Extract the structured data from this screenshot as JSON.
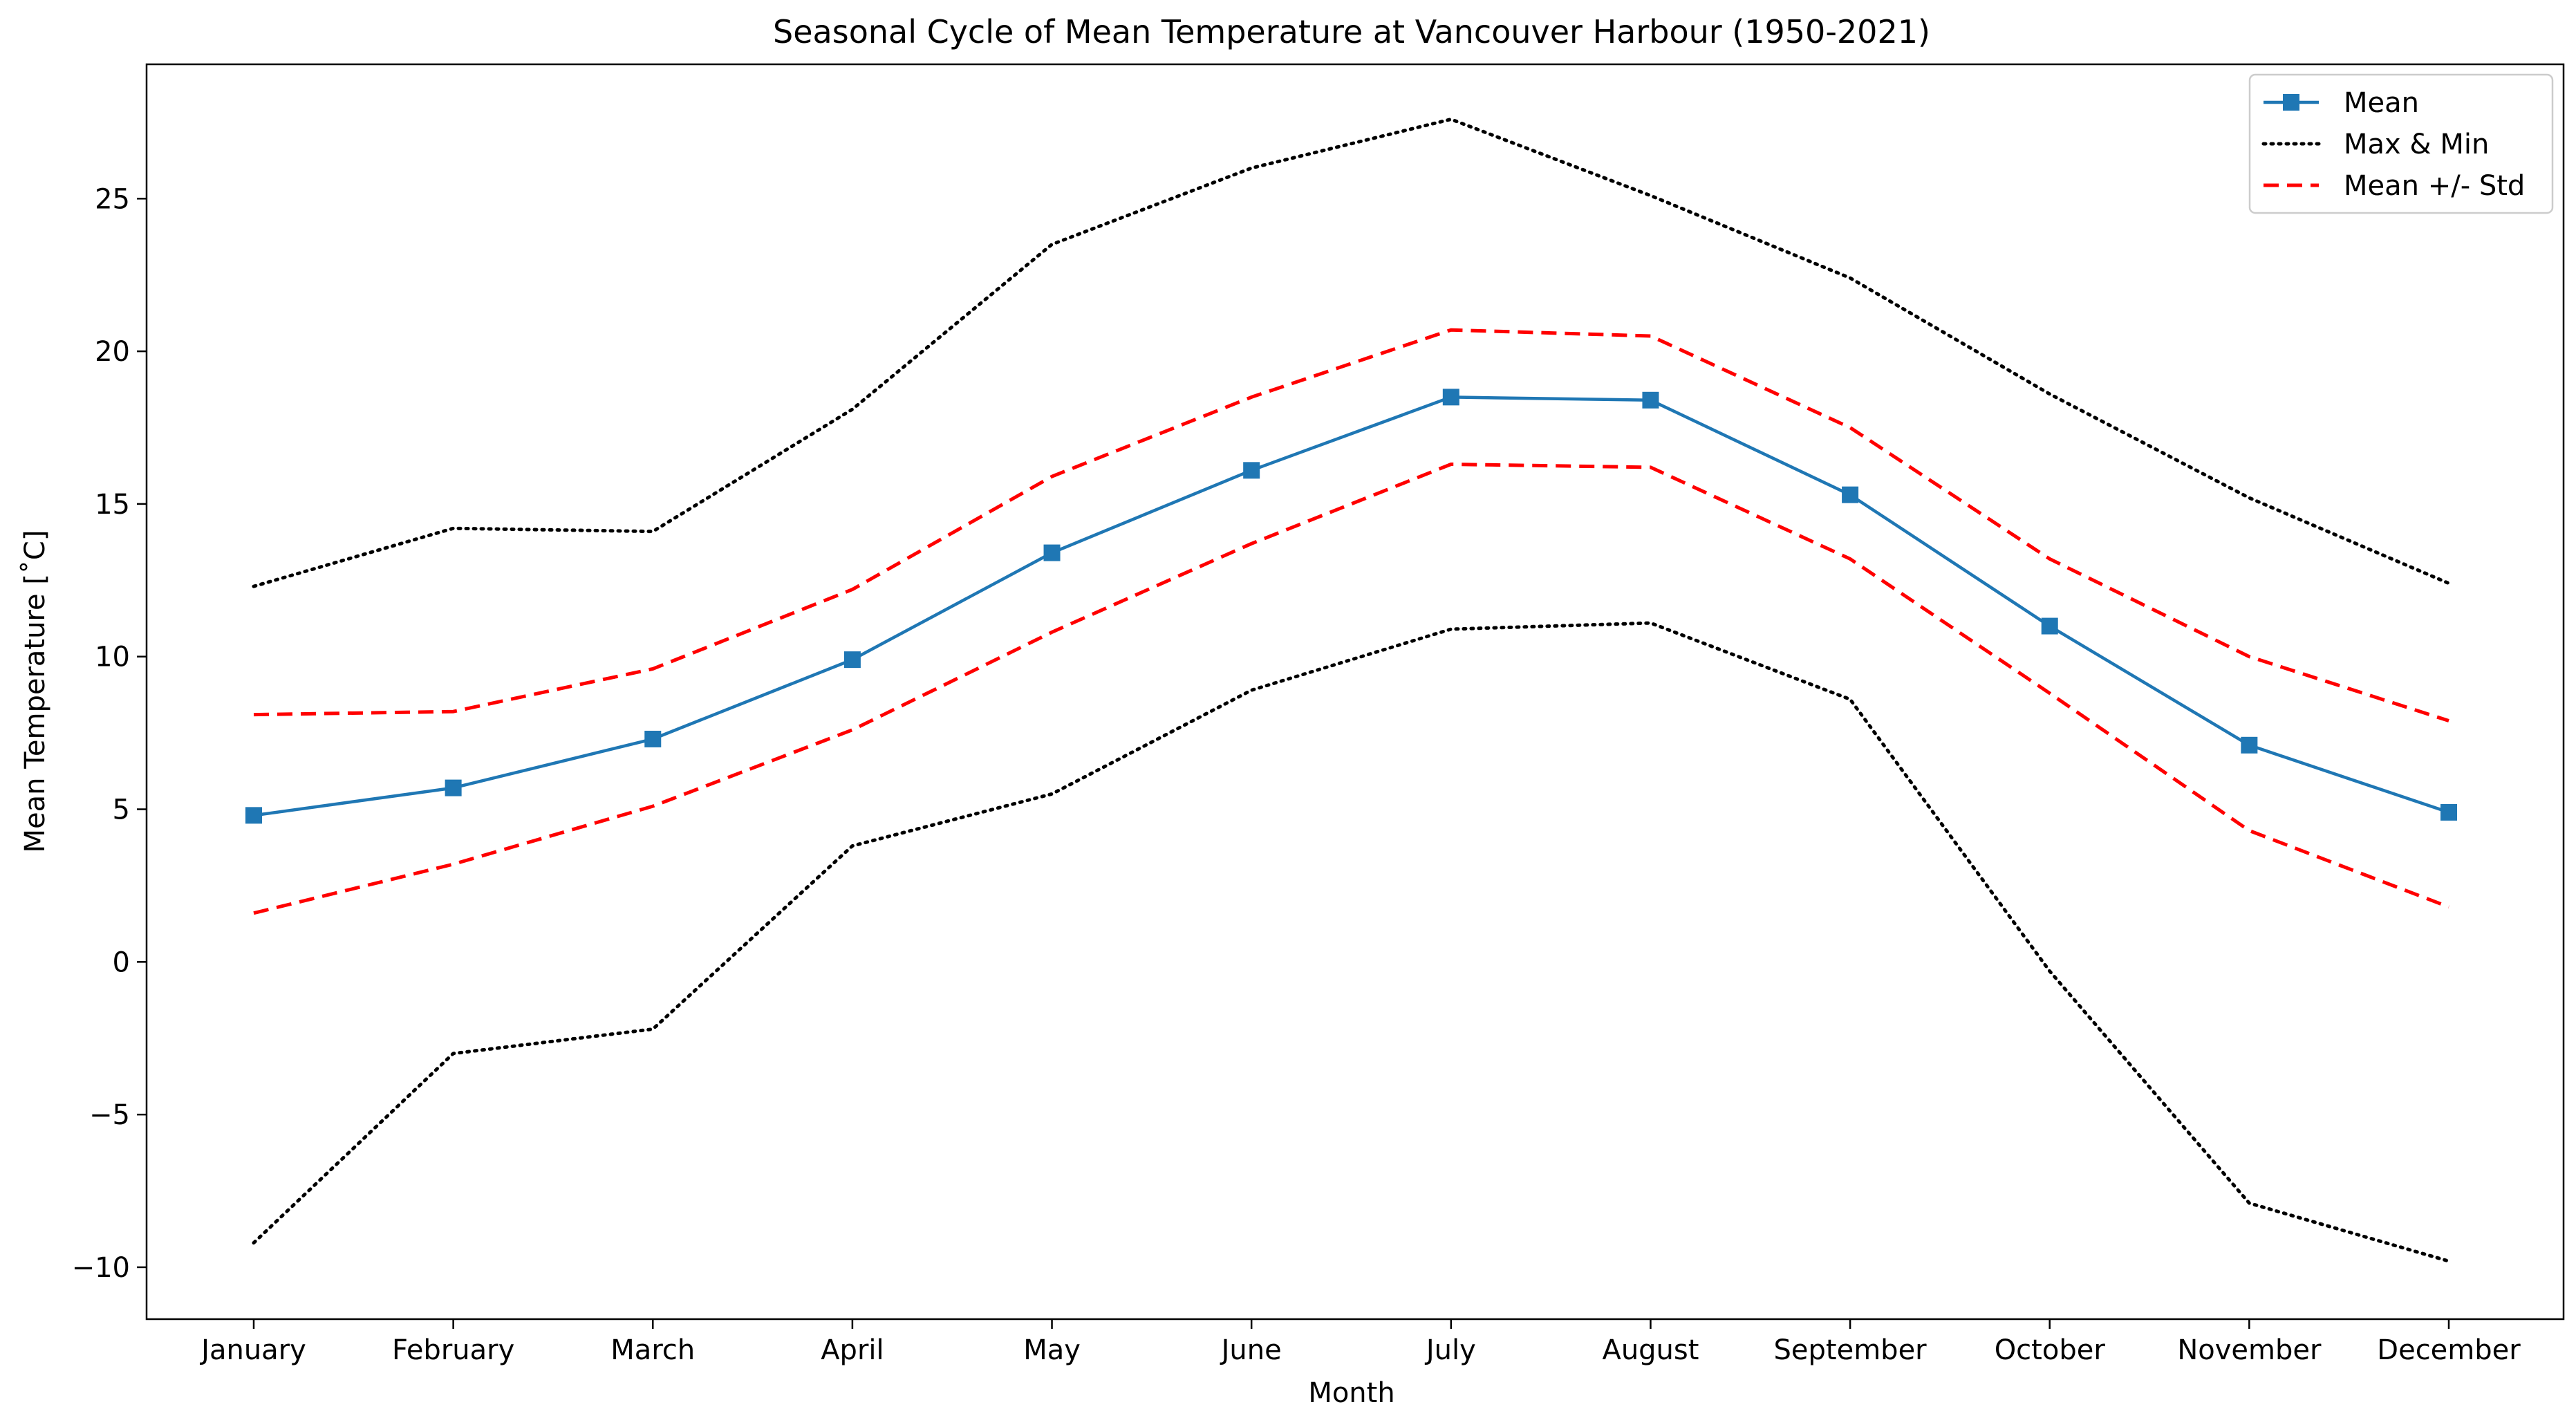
{
  "chart_data": {
    "type": "line",
    "title": "Seasonal Cycle of Mean Temperature at Vancouver Harbour (1950-2021)",
    "xlabel": "Month",
    "ylabel": "Mean Temperature [˚C]",
    "categories": [
      "January",
      "February",
      "March",
      "April",
      "May",
      "June",
      "July",
      "August",
      "September",
      "October",
      "November",
      "December"
    ],
    "ylim": [
      -11.7,
      29.4
    ],
    "yticks": [
      -10,
      -5,
      0,
      5,
      10,
      15,
      20,
      25
    ],
    "ytick_labels": [
      "−10",
      "−5",
      "0",
      "5",
      "10",
      "15",
      "20",
      "25"
    ],
    "grid": false,
    "legend_position": "top-right",
    "series": [
      {
        "name": "Mean",
        "style": "solid-square-markers",
        "color": "#1f77b4",
        "values": [
          4.8,
          5.7,
          7.3,
          9.9,
          13.4,
          16.1,
          18.5,
          18.4,
          15.3,
          11.0,
          7.1,
          4.9
        ]
      },
      {
        "name": "Max & Min",
        "style": "dotted",
        "color": "#000000",
        "values": [
          12.3,
          14.2,
          14.1,
          18.1,
          23.5,
          26.0,
          27.6,
          25.1,
          22.4,
          18.6,
          15.2,
          12.4
        ]
      },
      {
        "name": "",
        "legend_group": "Max & Min",
        "style": "dotted",
        "color": "#000000",
        "values": [
          -9.2,
          -3.0,
          -2.2,
          3.8,
          5.5,
          8.9,
          10.9,
          11.1,
          8.6,
          -0.3,
          -7.9,
          -9.8
        ]
      },
      {
        "name": "Mean +/- Std",
        "style": "dashed",
        "color": "#ff0000",
        "values": [
          8.1,
          8.2,
          9.6,
          12.2,
          15.9,
          18.5,
          20.7,
          20.5,
          17.5,
          13.2,
          10.0,
          7.9
        ]
      },
      {
        "name": "",
        "legend_group": "Mean +/- Std",
        "style": "dashed",
        "color": "#ff0000",
        "values": [
          1.6,
          3.2,
          5.1,
          7.6,
          10.8,
          13.7,
          16.3,
          16.2,
          13.2,
          8.8,
          4.3,
          1.8
        ]
      }
    ],
    "legend": [
      "Mean",
      "Max & Min",
      "Mean +/- Std"
    ]
  }
}
